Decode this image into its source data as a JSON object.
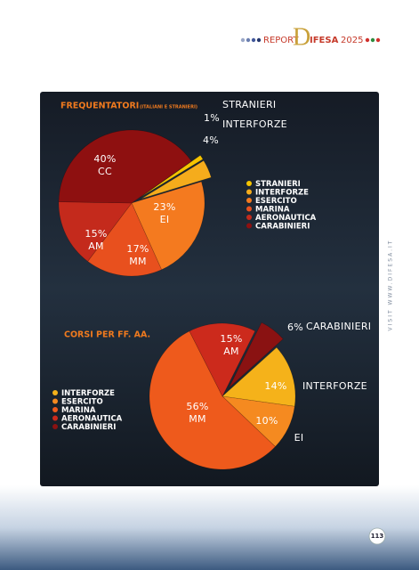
{
  "header": {
    "report": "REPORT",
    "brand_initial": "D",
    "brand_rest": "IFESA",
    "year": "2025"
  },
  "side_text": "VISIT WWW.DIFESA.IT",
  "page_number": "113",
  "chart_data": [
    {
      "type": "pie",
      "title": "FREQUENTATORI",
      "subtitle": "(ITALIANI E STRANIERI)",
      "categories": [
        "STRANIERI",
        "INTERFORZE",
        "ESERCITO",
        "MARINA",
        "AERONAUTICA",
        "CARABINIERI"
      ],
      "values": [
        1,
        4,
        23,
        17,
        15,
        40
      ],
      "value_labels": [
        "1%",
        "4%",
        "23%",
        "17%",
        "15%",
        "40%"
      ],
      "slice_names": [
        "STRANIERI",
        "INTERFORZE",
        "EI",
        "MM",
        "AM",
        "CC"
      ],
      "colors": [
        "#f6c400",
        "#f5ac1c",
        "#f47a1f",
        "#e8501e",
        "#c42a1c",
        "#8e1010"
      ],
      "explode": [
        true,
        true,
        false,
        false,
        false,
        false
      ],
      "legend": "right"
    },
    {
      "type": "pie",
      "title": "CORSI PER FF. AA.",
      "categories": [
        "INTERFORZE",
        "ESERCITO",
        "MARINA",
        "AERONAUTICA",
        "CARABINIERI"
      ],
      "values": [
        14,
        10,
        56,
        15,
        6
      ],
      "value_labels": [
        "14%",
        "10%",
        "56%",
        "15%",
        "6%"
      ],
      "slice_names": [
        "INTERFORZE",
        "EI",
        "MM",
        "AM",
        "CARABINIERI"
      ],
      "colors": [
        "#f5b21a",
        "#f58a20",
        "#ee5a1c",
        "#cc2a1c",
        "#8a1212"
      ],
      "explode": [
        false,
        false,
        false,
        false,
        true
      ],
      "legend": "left"
    }
  ]
}
